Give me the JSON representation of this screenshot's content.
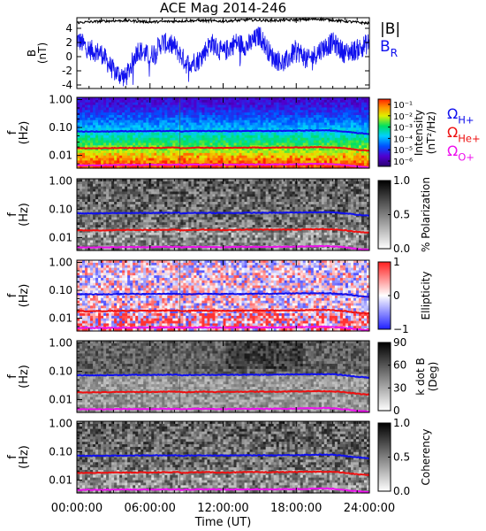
{
  "title": "ACE Mag 2014-246",
  "xlabel": "Time (UT)",
  "x_ticks": [
    "00:00:00",
    "06:00:00",
    "12:00:00",
    "18:00:00",
    "24:00:00"
  ],
  "colors": {
    "B_total": "#000000",
    "B_R": "#1010ee",
    "omega_h": "#1010ee",
    "omega_he": "#ee1010",
    "omega_o": "#ee10ee"
  },
  "chart_data": [
    {
      "type": "line",
      "name": "magnetic-field",
      "ylabel_1": "B",
      "ylabel_2": "(nT)",
      "ylim": [
        -4.5,
        5.5
      ],
      "y_ticks": [
        "4",
        "2",
        "0",
        "-2",
        "-4"
      ],
      "x_range_hours": [
        0,
        24
      ],
      "series": [
        {
          "name": "|B|",
          "x": [
            0,
            2,
            4,
            6,
            8,
            10,
            12,
            14,
            16,
            18,
            20,
            22,
            24
          ],
          "values": [
            4.8,
            5.0,
            5.1,
            4.9,
            5.0,
            5.1,
            5.0,
            5.2,
            5.1,
            5.2,
            5.3,
            5.0,
            4.7
          ]
        },
        {
          "name": "B",
          "sub": "R",
          "x": [
            0,
            1,
            2,
            3,
            4,
            5,
            6,
            7,
            8,
            9,
            10,
            11,
            12,
            13,
            14,
            15,
            16,
            17,
            18,
            19,
            20,
            21,
            22,
            23,
            24
          ],
          "values": [
            2.5,
            1.0,
            0.5,
            -2.0,
            -3.0,
            1.0,
            0.0,
            2.0,
            1.5,
            -1.0,
            -0.5,
            2.0,
            0.5,
            2.0,
            1.5,
            3.0,
            0.0,
            -1.0,
            1.0,
            -0.5,
            1.0,
            2.0,
            0.5,
            1.0,
            2.0
          ]
        }
      ]
    },
    {
      "type": "heatmap",
      "name": "intensity",
      "ylabel_1": "f",
      "ylabel_2": "(Hz)",
      "y_ticks": [
        "1.00",
        "0.10",
        "0.01"
      ],
      "colorbar_label_1": "Intensity",
      "colorbar_label_2": "(nT²/Hz)",
      "colorbar_ticks": [
        "10⁻¹",
        "10⁻²",
        "10⁻³",
        "10⁻⁴",
        "10⁻⁵",
        "10⁻⁶"
      ]
    },
    {
      "type": "heatmap",
      "name": "polarization",
      "ylabel_1": "f",
      "ylabel_2": "(Hz)",
      "y_ticks": [
        "1.00",
        "0.10",
        "0.01"
      ],
      "colorbar_label_1": "% Polarization",
      "colorbar_ticks": [
        "1.0",
        "0.5",
        "0.0"
      ]
    },
    {
      "type": "heatmap",
      "name": "ellipticity",
      "ylabel_1": "f",
      "ylabel_2": "(Hz)",
      "y_ticks": [
        "1.00",
        "0.10",
        "0.01"
      ],
      "colorbar_label_1": "Ellipticity",
      "colorbar_ticks": [
        "1",
        "0",
        "−1"
      ]
    },
    {
      "type": "heatmap",
      "name": "k-dot-b",
      "ylabel_1": "f",
      "ylabel_2": "(Hz)",
      "y_ticks": [
        "1.00",
        "0.10",
        "0.01"
      ],
      "colorbar_label_1": "k dot B",
      "colorbar_label_2": "(Deg)",
      "colorbar_ticks": [
        "90",
        "60",
        "30",
        "0"
      ]
    },
    {
      "type": "heatmap",
      "name": "coherency",
      "ylabel_1": "f",
      "ylabel_2": "(Hz)",
      "y_ticks": [
        "1.00",
        "0.10",
        "0.01"
      ],
      "colorbar_label_1": "Coherency",
      "colorbar_ticks": [
        "1.0",
        "0.5",
        "0.0"
      ]
    }
  ],
  "gyrofrequency_lines": {
    "x_hours": [
      0,
      2,
      4,
      6,
      8,
      8.4,
      8.5,
      10,
      12,
      14,
      16,
      18,
      20,
      21,
      22,
      23,
      24
    ],
    "series": [
      {
        "name": "Ω",
        "sub": "H+",
        "values_hz": [
          0.072,
          0.072,
          0.074,
          0.074,
          0.075,
          0.075,
          0.072,
          0.075,
          0.074,
          0.075,
          0.075,
          0.077,
          0.079,
          0.078,
          0.072,
          0.064,
          0.059
        ]
      },
      {
        "name": "Ω",
        "sub": "He+",
        "values_hz": [
          0.018,
          0.018,
          0.0185,
          0.0185,
          0.019,
          0.019,
          0.018,
          0.019,
          0.0185,
          0.019,
          0.019,
          0.0193,
          0.0198,
          0.0195,
          0.018,
          0.016,
          0.0148
        ]
      },
      {
        "name": "Ω",
        "sub": "O+",
        "values_hz": [
          0.0045,
          0.0045,
          0.0046,
          0.0046,
          0.0047,
          0.0047,
          0.0045,
          0.0047,
          0.0046,
          0.0047,
          0.0047,
          0.0048,
          0.005,
          0.0049,
          0.0045,
          0.004,
          0.0037
        ]
      }
    ]
  },
  "right_legend": {
    "top": [
      {
        "name": "|B|",
        "sub": ""
      },
      {
        "name": "B",
        "sub": "R"
      }
    ]
  }
}
